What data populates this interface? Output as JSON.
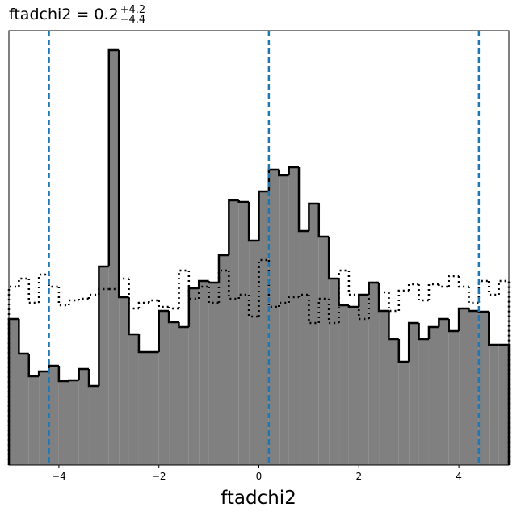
{
  "chart_data": {
    "type": "histogram",
    "title": "ftadchi2 = 0.2",
    "title_sup": "+4.2",
    "title_sub": "−4.4",
    "xlabel": "ftadchi2",
    "bins": [
      -5,
      -4.8,
      -4.6,
      -4.4,
      -4.2,
      -4,
      -3.8,
      -3.6,
      -3.4,
      -3.2,
      -3,
      -2.8,
      -2.6,
      -2.4,
      -2.2,
      -2,
      -1.8,
      -1.6,
      -1.4,
      -1.2,
      -1,
      -0.8,
      -0.6,
      -0.4,
      -0.2,
      0,
      0.2,
      0.4,
      0.6,
      0.8,
      1,
      1.2,
      1.4,
      1.6,
      1.8,
      2,
      2.2,
      2.4,
      2.6,
      2.8,
      3,
      3.2,
      3.4,
      3.6,
      3.8,
      4,
      4.2,
      4.4,
      4.6,
      4.8,
      5
    ],
    "series": [
      {
        "color": "#808080",
        "fill": true,
        "line_style": "solid",
        "values": [
          181,
          138,
          110,
          116,
          123,
          104,
          105,
          119,
          98,
          246,
          514,
          208,
          162,
          140,
          140,
          191,
          177,
          171,
          219,
          228,
          226,
          260,
          328,
          326,
          278,
          339,
          366,
          359,
          369,
          290,
          324,
          283,
          231,
          198,
          196,
          211,
          226,
          191,
          156,
          128,
          176,
          156,
          171,
          181,
          166,
          194,
          191,
          190,
          149,
          149
        ]
      },
      {
        "color": "#000000",
        "fill": false,
        "line_style": "dotted",
        "values": [
          221,
          231,
          201,
          236,
          221,
          198,
          204,
          206,
          211,
          218,
          218,
          231,
          194,
          201,
          204,
          196,
          194,
          241,
          206,
          221,
          201,
          241,
          206,
          211,
          184,
          254,
          196,
          201,
          208,
          211,
          176,
          206,
          176,
          241,
          211,
          181,
          226,
          214,
          191,
          216,
          224,
          204,
          224,
          221,
          234,
          221,
          201,
          228,
          211,
          228
        ]
      }
    ],
    "vlines": [
      -4.2,
      0.2,
      4.4
    ],
    "vline_color": "#1f77b4",
    "xlim": [
      -5,
      5
    ],
    "ylim": [
      0,
      538
    ],
    "xticks": [
      {
        "value": -4,
        "label": "−4"
      },
      {
        "value": -2,
        "label": "−2"
      },
      0,
      2,
      4
    ]
  }
}
